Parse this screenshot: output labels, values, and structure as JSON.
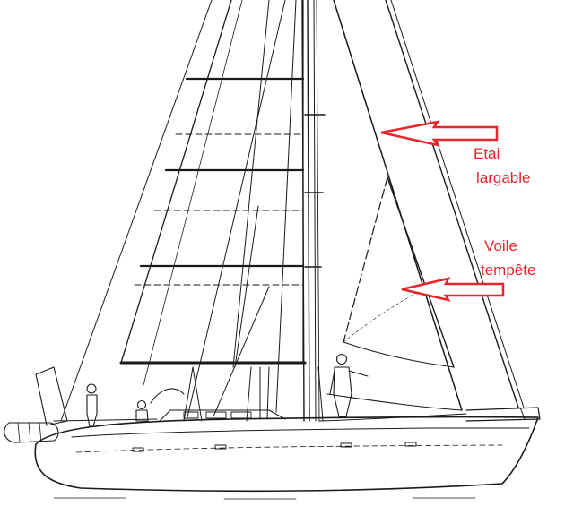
{
  "annotations": {
    "stay": {
      "line1": "Etai",
      "line2": "largable"
    },
    "storm_sail": {
      "line1": "Voile",
      "line2": "tempête"
    }
  },
  "colors": {
    "annotation": "#e5262b",
    "drawing": "#1a1a1a",
    "background": "#ffffff"
  },
  "icons": [
    "arrow-left-icon"
  ]
}
